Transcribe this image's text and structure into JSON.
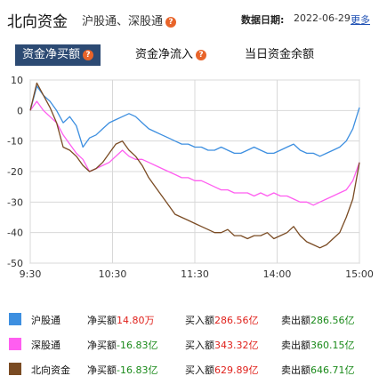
{
  "header": {
    "title": "北向资金",
    "subtitle": "沪股通、深股通",
    "date_label": "数据日期:",
    "date": "2022-06-29",
    "more": "更多"
  },
  "tabs": [
    {
      "label": "资金净买额",
      "active": true
    },
    {
      "label": "资金净流入",
      "active": false
    },
    {
      "label": "当日资金余额",
      "active": false
    }
  ],
  "chart_data": {
    "type": "line",
    "x_ticks": [
      "9:30",
      "10:30",
      "11:30",
      "14:00",
      "15:00"
    ],
    "ylim": [
      -50,
      10
    ],
    "y_ticks": [
      "10",
      "0",
      "-10",
      "-20",
      "-30",
      "-40",
      "-50"
    ],
    "grid": true,
    "series": [
      {
        "name": "沪股通",
        "color": "#3d8fe0",
        "values": [
          0,
          8,
          5,
          3,
          0,
          -4,
          -2,
          -5,
          -12,
          -9,
          -8,
          -6,
          -4,
          -3,
          -2,
          -1,
          -2,
          -4,
          -6,
          -7,
          -8,
          -9,
          -10,
          -11,
          -11,
          -12,
          -12,
          -13,
          -13,
          -12,
          -13,
          -14,
          -14,
          -13,
          -12,
          -13,
          -14,
          -14,
          -13,
          -12,
          -11,
          -13,
          -14,
          -14,
          -15,
          -14,
          -13,
          -12,
          -10,
          -6,
          1
        ]
      },
      {
        "name": "深股通",
        "color": "#ff5ef0",
        "values": [
          0,
          3,
          0,
          -2,
          -4,
          -8,
          -11,
          -14,
          -16,
          -20,
          -19,
          -18,
          -17,
          -15,
          -13,
          -15,
          -16,
          -16,
          -17,
          -18,
          -19,
          -20,
          -21,
          -22,
          -22,
          -23,
          -23,
          -24,
          -25,
          -26,
          -26,
          -27,
          -27,
          -27,
          -28,
          -27,
          -28,
          -27,
          -28,
          -28,
          -29,
          -30,
          -30,
          -31,
          -30,
          -29,
          -28,
          -27,
          -26,
          -23,
          -17
        ]
      },
      {
        "name": "北向资金",
        "color": "#7a4b23",
        "values": [
          0,
          9,
          5,
          1,
          -4,
          -12,
          -13,
          -15,
          -18,
          -20,
          -19,
          -17,
          -14,
          -11,
          -10,
          -13,
          -15,
          -18,
          -22,
          -25,
          -28,
          -31,
          -34,
          -35,
          -36,
          -37,
          -38,
          -39,
          -40,
          -40,
          -39,
          -41,
          -41,
          -42,
          -41,
          -41,
          -40,
          -42,
          -41,
          -40,
          -38,
          -41,
          -43,
          -44,
          -45,
          -44,
          -42,
          -40,
          -35,
          -29,
          -17
        ]
      }
    ]
  },
  "legend": [
    {
      "name": "沪股通",
      "color": "#3d8fe0",
      "net_label": "净买额",
      "net": "14.80万",
      "net_color": "red",
      "buy_label": "买入额",
      "buy": "286.56亿",
      "sell_label": "卖出额",
      "sell": "286.56亿"
    },
    {
      "name": "深股通",
      "color": "#ff5ef0",
      "net_label": "净买额",
      "net": "-16.83亿",
      "net_color": "green",
      "buy_label": "买入额",
      "buy": "343.32亿",
      "sell_label": "卖出额",
      "sell": "360.15亿"
    },
    {
      "name": "北向资金",
      "color": "#7a4b23",
      "net_label": "净买额",
      "net": "-16.83亿",
      "net_color": "green",
      "buy_label": "买入额",
      "buy": "629.89亿",
      "sell_label": "卖出额",
      "sell": "646.71亿"
    }
  ]
}
